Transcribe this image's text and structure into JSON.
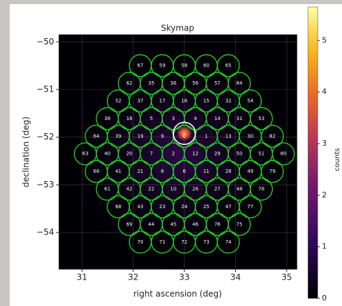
{
  "chart_data": {
    "type": "skymap",
    "title": "Skymap",
    "x_label": "right ascension (deg)",
    "y_label": "declination (deg)",
    "colorbar_label": "counts",
    "colormap": "inferno",
    "xlim": [
      30.55,
      35.2
    ],
    "ylim": [
      -54.77,
      -49.85
    ],
    "xticks": [
      31,
      32,
      33,
      34,
      35
    ],
    "yticks": [
      {
        "value": -50,
        "label": "−50"
      },
      {
        "value": -51,
        "label": "−51"
      },
      {
        "value": -52,
        "label": "−52"
      },
      {
        "value": -53,
        "label": "−53"
      },
      {
        "value": -54,
        "label": "−54"
      }
    ],
    "clim": [
      0,
      5.65
    ],
    "cticks": [
      0,
      1,
      2,
      3,
      4,
      5
    ],
    "grid": true,
    "region_color": "#22dd22",
    "region_radius": 0.215,
    "regions": [
      {
        "dec": -50.5,
        "ra": [
          32.14,
          32.57,
          33,
          33.43,
          33.86
        ],
        "labels": [
          "67",
          "59",
          "58",
          "60",
          "65"
        ]
      },
      {
        "dec": -50.87,
        "ra": [
          31.925,
          32.355,
          32.785,
          33.215,
          33.645,
          34.075
        ],
        "labels": [
          "62",
          "35",
          "36",
          "56",
          "57",
          "84"
        ]
      },
      {
        "dec": -51.24,
        "ra": [
          31.71,
          32.14,
          32.57,
          33,
          33.43,
          33.86,
          34.29
        ],
        "labels": [
          "52",
          "37",
          "17",
          "16",
          "15",
          "32",
          "54"
        ]
      },
      {
        "dec": -51.61,
        "ra": [
          31.495,
          31.925,
          32.355,
          32.785,
          33.215,
          33.645,
          34.075,
          34.505
        ],
        "labels": [
          "38",
          "18",
          "5",
          "3",
          "4",
          "14",
          "31",
          "53"
        ]
      },
      {
        "dec": -51.98,
        "ra": [
          31.28,
          31.71,
          32.14,
          32.57,
          33,
          33.43,
          33.86,
          34.29,
          34.72
        ],
        "labels": [
          "64",
          "39",
          "19",
          "9",
          "0",
          "1",
          "13",
          "30",
          "82"
        ]
      },
      {
        "dec": -52.35,
        "ra": [
          31.065,
          31.495,
          31.925,
          32.355,
          32.785,
          33.215,
          33.645,
          34.075,
          34.505,
          34.935
        ],
        "labels": [
          "63",
          "40",
          "20",
          "7",
          "2",
          "12",
          "29",
          "50",
          "51",
          "80"
        ]
      },
      {
        "dec": -52.72,
        "ra": [
          31.28,
          31.71,
          32.14,
          32.57,
          33,
          33.43,
          33.86,
          34.29,
          34.72
        ],
        "labels": [
          "66",
          "41",
          "21",
          "8",
          "6",
          "11",
          "28",
          "49",
          "79"
        ]
      },
      {
        "dec": -53.09,
        "ra": [
          31.495,
          31.925,
          32.355,
          32.785,
          33.215,
          33.645,
          34.075,
          34.505
        ],
        "labels": [
          "61",
          "42",
          "22",
          "10",
          "26",
          "27",
          "48",
          "78"
        ]
      },
      {
        "dec": -53.46,
        "ra": [
          31.71,
          32.14,
          32.57,
          33,
          33.43,
          33.86,
          34.29
        ],
        "labels": [
          "68",
          "43",
          "23",
          "24",
          "25",
          "47",
          "77"
        ]
      },
      {
        "dec": -53.83,
        "ra": [
          31.925,
          32.355,
          32.785,
          33.215,
          33.645,
          34.075
        ],
        "labels": [
          "69",
          "44",
          "45",
          "46",
          "76",
          "75"
        ]
      },
      {
        "dec": -54.2,
        "ra": [
          32.14,
          32.57,
          33,
          33.43,
          33.86
        ],
        "labels": [
          "70",
          "71",
          "72",
          "73",
          "74"
        ]
      }
    ],
    "source": {
      "ra": 33,
      "dec": -51.92,
      "color": "#ffffff"
    }
  }
}
